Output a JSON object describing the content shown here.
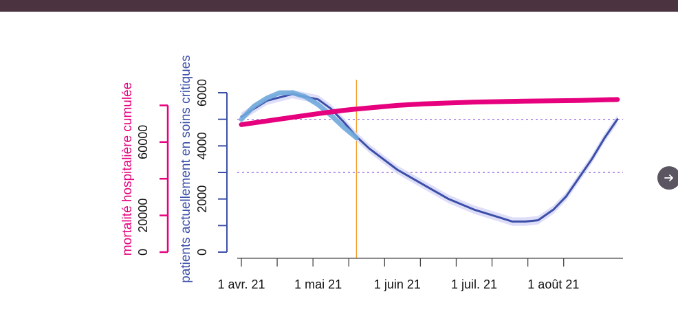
{
  "chart_data": {
    "type": "line",
    "left_axis_outer": {
      "label": "mortalité hospitalière cumulée",
      "ticks": [
        0,
        20000,
        60000
      ],
      "tick_labels": [
        "0",
        "20000",
        "60000"
      ],
      "ylim": [
        0,
        80000
      ],
      "color": "#e6007e"
    },
    "left_axis_inner": {
      "label": "patients actuellement en soins critiques",
      "ticks": [
        0,
        2000,
        4000,
        6000
      ],
      "tick_labels": [
        "0",
        "2000",
        "4000",
        "6000"
      ],
      "ylim": [
        0,
        6000
      ],
      "color": "#3b4fa8"
    },
    "x_axis": {
      "ticks": [
        "2021-04-01",
        "2021-05-01",
        "2021-06-01",
        "2021-07-01",
        "2021-08-01"
      ],
      "tick_labels": [
        "1 avr. 21",
        "1 mai 21",
        "1 juin 21",
        "1 juil. 21",
        "1 août 21"
      ],
      "range": [
        "2021-04-01",
        "2021-08-26"
      ]
    },
    "reference_lines": [
      {
        "type": "horizontal",
        "axis": "critical",
        "value": 5000,
        "style": "dotted",
        "color": "#a070e0"
      },
      {
        "type": "horizontal",
        "axis": "critical",
        "value": 3000,
        "style": "dotted",
        "color": "#a070e0"
      },
      {
        "type": "vertical",
        "x": "2021-05-16",
        "color": "#f5a030"
      }
    ],
    "series": [
      {
        "axis": "critical",
        "color": "#3b4fa8",
        "x": [
          "2021-04-01",
          "2021-04-11",
          "2021-04-21",
          "2021-05-01",
          "2021-05-06",
          "2021-05-11",
          "2021-05-16",
          "2021-05-21",
          "2021-06-01",
          "2021-06-11",
          "2021-06-21",
          "2021-07-01",
          "2021-07-11",
          "2021-07-16",
          "2021-07-21",
          "2021-07-26",
          "2021-08-01",
          "2021-08-06",
          "2021-08-11",
          "2021-08-16",
          "2021-08-21",
          "2021-08-26"
        ],
        "y": [
          5100,
          5700,
          5950,
          5750,
          5400,
          4900,
          4350,
          3900,
          3100,
          2550,
          2000,
          1600,
          1300,
          1150,
          1150,
          1200,
          1600,
          2100,
          2800,
          3500,
          4300,
          5000
        ]
      },
      {
        "axis": "critical",
        "color": "#6fa8dc",
        "x": [
          "2021-04-01",
          "2021-04-06",
          "2021-04-11",
          "2021-04-16",
          "2021-04-21",
          "2021-04-26",
          "2021-05-01",
          "2021-05-06",
          "2021-05-11",
          "2021-05-16"
        ],
        "y": [
          5000,
          5500,
          5800,
          6000,
          6000,
          5850,
          5550,
          5150,
          4700,
          4300
        ]
      },
      {
        "axis": "mortality",
        "color": "#e6007e",
        "x": [
          "2021-04-01",
          "2021-04-11",
          "2021-04-21",
          "2021-05-01",
          "2021-05-11",
          "2021-05-16",
          "2021-06-01",
          "2021-06-11",
          "2021-07-01",
          "2021-07-21",
          "2021-08-11",
          "2021-08-26"
        ],
        "y": [
          69500,
          71500,
          73500,
          75500,
          77300,
          78000,
          80000,
          80800,
          81800,
          82300,
          82700,
          83200
        ]
      }
    ],
    "bands": [
      {
        "axis": "critical",
        "color": "#d8d8f8",
        "x": [
          "2021-04-01",
          "2021-04-11",
          "2021-04-21",
          "2021-05-01",
          "2021-05-06",
          "2021-05-11",
          "2021-05-16",
          "2021-05-21",
          "2021-06-01",
          "2021-06-11",
          "2021-06-21",
          "2021-07-01",
          "2021-07-11",
          "2021-07-16",
          "2021-07-21",
          "2021-07-26",
          "2021-08-01",
          "2021-08-06",
          "2021-08-11",
          "2021-08-16",
          "2021-08-21",
          "2021-08-26"
        ],
        "y": [
          5100,
          5700,
          5950,
          5750,
          5400,
          4900,
          4350,
          3900,
          3100,
          2550,
          2000,
          1600,
          1300,
          1150,
          1150,
          1200,
          1600,
          2100,
          2800,
          3500,
          4300,
          5000
        ],
        "halfwidth": 160
      },
      {
        "axis": "mortality",
        "color": "#f6c9e4",
        "x": [
          "2021-04-01",
          "2021-04-11",
          "2021-04-21",
          "2021-05-01",
          "2021-05-11",
          "2021-05-16",
          "2021-06-01",
          "2021-06-11",
          "2021-07-01",
          "2021-07-21",
          "2021-08-11",
          "2021-08-26"
        ],
        "y": [
          69500,
          71500,
          73500,
          75500,
          77300,
          78000,
          80000,
          80800,
          81800,
          82300,
          82700,
          83200
        ],
        "halfwidth": 900
      }
    ]
  }
}
